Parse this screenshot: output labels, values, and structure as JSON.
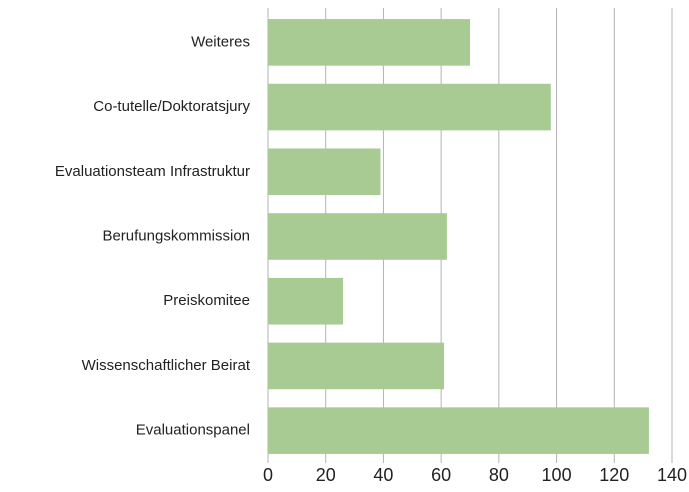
{
  "chart_data": {
    "type": "bar",
    "orientation": "horizontal",
    "categories": [
      "Weiteres",
      "Co-tutelle/Doktoratsjury",
      "Evaluationsteam Infrastruktur",
      "Berufungskommission",
      "Preiskomitee",
      "Wissenschaftlicher Beirat",
      "Evaluationspanel"
    ],
    "values": [
      70,
      98,
      39,
      62,
      26,
      61,
      132
    ],
    "color": "#a8cb93",
    "xlim": [
      0,
      140
    ],
    "xticks": [
      0,
      20,
      40,
      60,
      80,
      100,
      120,
      140
    ],
    "grid": true
  }
}
